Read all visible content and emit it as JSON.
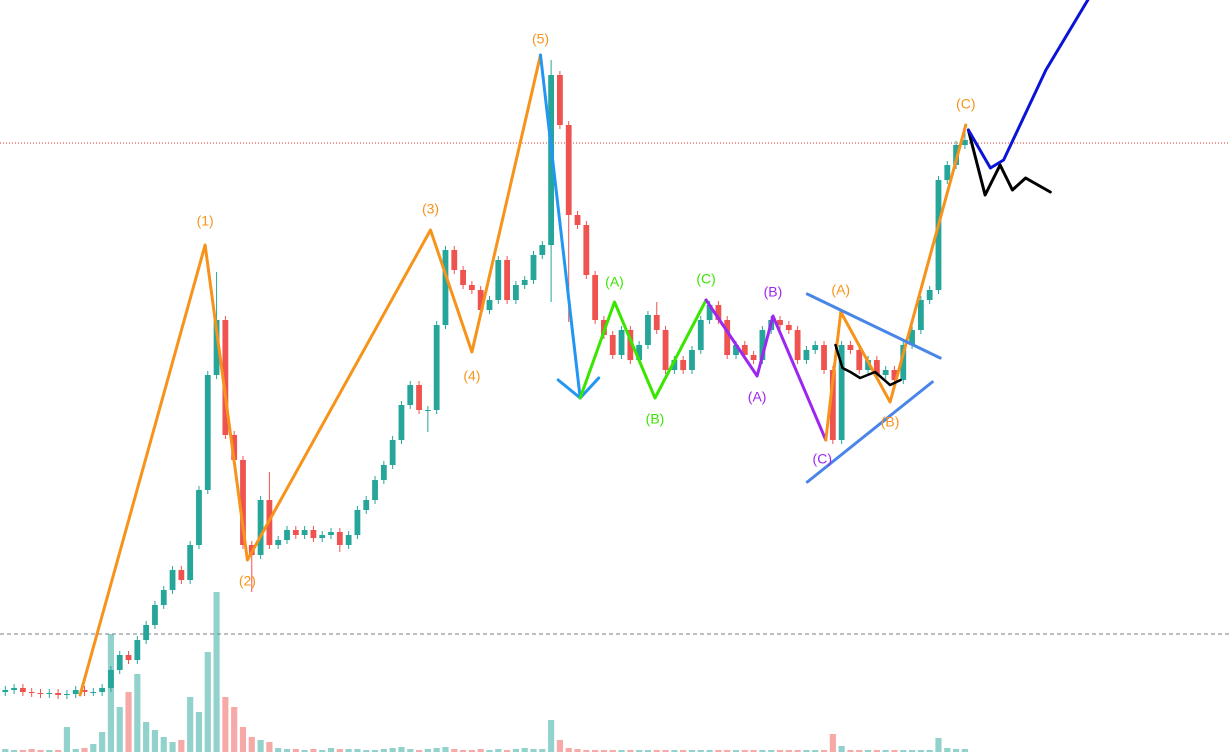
{
  "chart_data": {
    "type": "candlestick",
    "xlim": [
      -0.6,
      139
    ],
    "ylim": [
      0,
      752
    ],
    "volume_ylim": [
      0,
      752
    ],
    "up_color": "#26a69a",
    "down_color": "#ef5350",
    "open": [
      60,
      62,
      64,
      60,
      59,
      58,
      59,
      57,
      58,
      62,
      60,
      60,
      64,
      82,
      97,
      92,
      112,
      127,
      147,
      162,
      182,
      172,
      207,
      262,
      377,
      432,
      317,
      292,
      207,
      197,
      252,
      207,
      212,
      222,
      217,
      222,
      214,
      217,
      220,
      207,
      217,
      242,
      252,
      272,
      287,
      312,
      347,
      367,
      342,
      342,
      427,
      502,
      482,
      467,
      462,
      442,
      452,
      492,
      452,
      467,
      472,
      497,
      507,
      677,
      627,
      537,
      527,
      477,
      432,
      417,
      397,
      422,
      392,
      407,
      437,
      422,
      382,
      392,
      382,
      402,
      432,
      447,
      432,
      397,
      407,
      397,
      392,
      422,
      432,
      427,
      422,
      392,
      402,
      407,
      382,
      312,
      407,
      402,
      382,
      392,
      377,
      382,
      372,
      407,
      422,
      452,
      462,
      572,
      587,
      607
    ],
    "high": [
      66,
      68,
      68,
      64,
      63,
      63,
      63,
      62,
      66,
      66,
      64,
      68,
      86,
      101,
      101,
      116,
      131,
      151,
      166,
      186,
      186,
      211,
      266,
      381,
      480,
      436,
      321,
      296,
      211,
      256,
      280,
      216,
      226,
      226,
      226,
      226,
      221,
      224,
      224,
      221,
      246,
      256,
      276,
      291,
      316,
      351,
      371,
      371,
      346,
      431,
      506,
      506,
      486,
      471,
      466,
      456,
      496,
      496,
      471,
      476,
      501,
      511,
      692,
      681,
      631,
      541,
      531,
      481,
      436,
      421,
      426,
      426,
      411,
      441,
      450,
      426,
      396,
      396,
      406,
      436,
      451,
      451,
      436,
      411,
      411,
      401,
      426,
      436,
      436,
      431,
      426,
      406,
      411,
      411,
      386,
      411,
      411,
      406,
      396,
      396,
      386,
      386,
      411,
      426,
      456,
      466,
      576,
      591,
      611,
      628
    ],
    "low": [
      56,
      58,
      56,
      55,
      54,
      54,
      53,
      53,
      54,
      56,
      56,
      56,
      60,
      78,
      88,
      88,
      108,
      123,
      143,
      158,
      168,
      168,
      203,
      258,
      373,
      313,
      288,
      203,
      160,
      193,
      203,
      203,
      208,
      213,
      213,
      210,
      210,
      213,
      200,
      203,
      213,
      238,
      248,
      268,
      283,
      308,
      343,
      338,
      320,
      338,
      423,
      478,
      463,
      458,
      438,
      438,
      448,
      448,
      448,
      463,
      468,
      493,
      450,
      623,
      430,
      523,
      473,
      428,
      413,
      393,
      393,
      388,
      388,
      403,
      418,
      378,
      378,
      378,
      378,
      398,
      428,
      428,
      393,
      393,
      393,
      388,
      388,
      418,
      423,
      418,
      388,
      388,
      398,
      378,
      308,
      308,
      398,
      378,
      378,
      373,
      373,
      368,
      368,
      403,
      418,
      448,
      458,
      568,
      583,
      603
    ],
    "close": [
      62,
      64,
      60,
      59,
      58,
      59,
      57,
      58,
      62,
      60,
      60,
      64,
      82,
      97,
      92,
      112,
      127,
      147,
      162,
      182,
      172,
      207,
      262,
      377,
      432,
      317,
      292,
      207,
      197,
      252,
      207,
      212,
      222,
      217,
      222,
      214,
      217,
      220,
      207,
      217,
      242,
      252,
      272,
      287,
      312,
      347,
      367,
      342,
      342,
      427,
      502,
      482,
      467,
      462,
      442,
      452,
      492,
      452,
      467,
      472,
      497,
      507,
      677,
      627,
      537,
      527,
      477,
      432,
      417,
      397,
      422,
      392,
      407,
      437,
      422,
      382,
      392,
      382,
      402,
      432,
      447,
      432,
      397,
      407,
      397,
      392,
      422,
      432,
      427,
      422,
      392,
      402,
      407,
      382,
      312,
      407,
      402,
      382,
      392,
      377,
      382,
      372,
      407,
      422,
      452,
      462,
      572,
      587,
      607,
      612
    ],
    "volume": [
      3,
      2,
      2,
      3,
      2,
      2,
      2,
      25,
      3,
      4,
      8,
      20,
      118,
      45,
      60,
      78,
      30,
      22,
      15,
      10,
      12,
      55,
      40,
      100,
      160,
      55,
      45,
      25,
      15,
      12,
      10,
      4,
      3,
      3,
      2,
      3,
      2,
      4,
      3,
      3,
      3,
      2,
      2,
      3,
      4,
      5,
      3,
      2,
      3,
      4,
      5,
      3,
      2,
      2,
      3,
      2,
      3,
      2,
      3,
      4,
      3,
      3,
      32,
      12,
      4,
      3,
      2,
      2,
      2,
      2,
      2,
      2,
      2,
      2,
      2,
      2,
      2,
      2,
      2,
      2,
      2,
      2,
      2,
      2,
      2,
      2,
      2,
      2,
      2,
      2,
      2,
      2,
      2,
      2,
      18,
      6,
      2,
      2,
      2,
      2,
      2,
      2,
      2,
      2,
      2,
      2,
      14,
      4,
      3,
      3
    ],
    "levels": [
      {
        "value": 118,
        "color": "#787b86",
        "dash": "4 3"
      },
      {
        "value": 609,
        "color": "#e53935",
        "dash": "1 2"
      }
    ],
    "waves": [
      {
        "color": "#f7931a",
        "width": 3,
        "x": [
          8.5,
          22.7,
          27.5,
          48.3,
          53.0,
          60.8
        ],
        "y": [
          57,
          507,
          192,
          522,
          400,
          697
        ]
      },
      {
        "color": "#2196f3",
        "width": 3,
        "x": [
          60.8,
          65.3
        ],
        "y": [
          697,
          354
        ]
      },
      {
        "color": "#2196f3",
        "width": 3,
        "x": [
          62.8,
          65.3,
          67.4
        ],
        "y": [
          372,
          354,
          374
        ]
      },
      {
        "color": "#39e600",
        "width": 3,
        "x": [
          65.3,
          69.2,
          73.8,
          79.6
        ],
        "y": [
          354,
          450,
          354,
          452
        ]
      },
      {
        "color": "#9c27f0",
        "width": 3,
        "x": [
          79.6,
          85.4,
          87.2,
          93.2
        ],
        "y": [
          452,
          376,
          436,
          312
        ]
      },
      {
        "color": "#f7931a",
        "width": 3,
        "x": [
          93.2,
          94.9,
          100.5,
          109.1
        ],
        "y": [
          312,
          440,
          350,
          627
        ]
      },
      {
        "color": "#4a86e8",
        "width": 3,
        "x": [
          91.1,
          106.2
        ],
        "y": [
          458,
          394
        ]
      },
      {
        "color": "#4a86e8",
        "width": 3,
        "x": [
          91.1,
          105.3
        ],
        "y": [
          270,
          370
        ]
      },
      {
        "color": "#000000",
        "width": 2.5,
        "x": [
          94.3,
          95.1,
          96.0,
          97.1,
          98.8,
          100.5,
          101.7
        ],
        "y": [
          407,
          384,
          380,
          374,
          380,
          367,
          372
        ]
      },
      {
        "color": "#000000",
        "width": 3,
        "x": [
          109.4,
          111.3,
          113.0,
          114.4,
          115.9,
          118.7
        ],
        "y": [
          622,
          557,
          587,
          562,
          574,
          560
        ]
      },
      {
        "color": "#0a14d6",
        "width": 3,
        "x": [
          109.4,
          111.9,
          113.4,
          118.2,
          123.3
        ],
        "y": [
          622,
          584,
          592,
          682,
          757
        ]
      }
    ],
    "labels": [
      {
        "text": "(1)",
        "color": "#f7931a",
        "x": 22.7,
        "y": 530
      },
      {
        "text": "(2)",
        "color": "#f7931a",
        "x": 27.5,
        "y": 170
      },
      {
        "text": "(3)",
        "color": "#f7931a",
        "x": 48.3,
        "y": 542
      },
      {
        "text": "(4)",
        "color": "#f7931a",
        "x": 53.0,
        "y": 375
      },
      {
        "text": "(5)",
        "color": "#f7931a",
        "x": 60.8,
        "y": 712
      },
      {
        "text": "(A)",
        "color": "#39e600",
        "x": 69.2,
        "y": 469
      },
      {
        "text": "(B)",
        "color": "#39e600",
        "x": 73.8,
        "y": 332
      },
      {
        "text": "(C)",
        "color": "#39e600",
        "x": 79.6,
        "y": 472
      },
      {
        "text": "(A)",
        "color": "#9c27f0",
        "x": 85.4,
        "y": 354
      },
      {
        "text": "(B)",
        "color": "#9c27f0",
        "x": 87.2,
        "y": 459
      },
      {
        "text": "(C)",
        "color": "#9c27f0",
        "x": 92.8,
        "y": 292
      },
      {
        "text": "(A)",
        "color": "#f7931a",
        "x": 94.9,
        "y": 461
      },
      {
        "text": "(B)",
        "color": "#f7931a",
        "x": 100.5,
        "y": 329
      },
      {
        "text": "(C)",
        "color": "#f7931a",
        "x": 109.1,
        "y": 647
      }
    ]
  }
}
